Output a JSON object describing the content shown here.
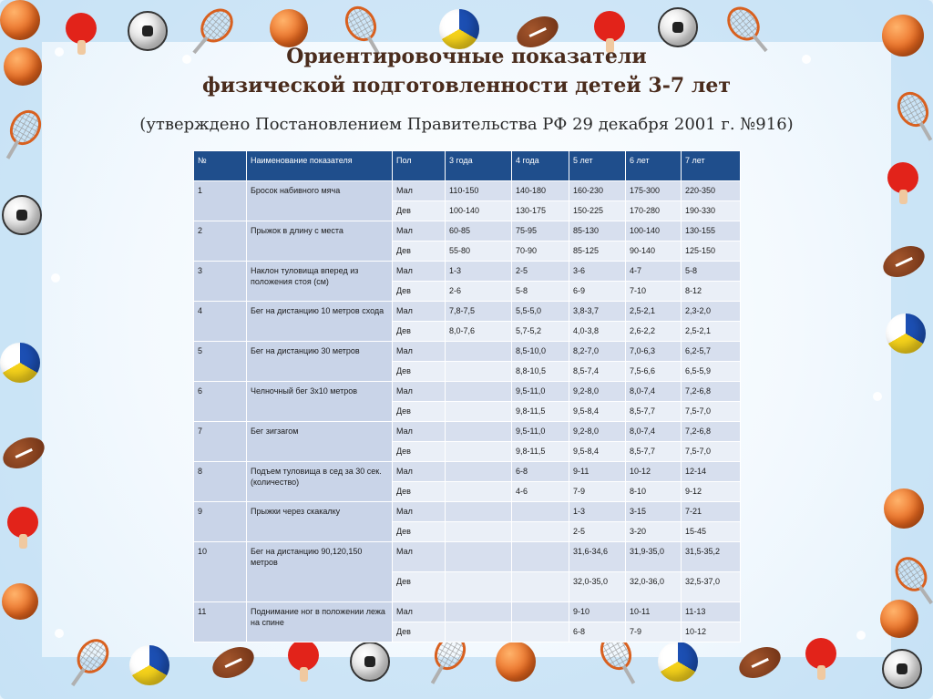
{
  "title_line1": "Ориентировочные показатели",
  "title_line2": "физической подготовленности детей 3-7 лет",
  "subtitle": "(утверждено Постановлением Правительства РФ 29 декабря 2001 г. №916)",
  "table": {
    "headers": [
      "№",
      "Наименование показателя",
      "Пол",
      "3 года",
      "4 года",
      "5 лет",
      "6 лет",
      "7 лет"
    ],
    "rows": [
      {
        "num": "1",
        "name": "Бросок набивного мяча",
        "sexes": [
          {
            "sex": "Мал",
            "values": [
              "110-150",
              "140-180",
              "160-230",
              "175-300",
              "220-350"
            ]
          },
          {
            "sex": "Дев",
            "values": [
              "100-140",
              "130-175",
              "150-225",
              "170-280",
              "190-330"
            ]
          }
        ]
      },
      {
        "num": "2",
        "name": "Прыжок в длину с места",
        "sexes": [
          {
            "sex": "Мал",
            "values": [
              "60-85",
              "75-95",
              "85-130",
              "100-140",
              "130-155"
            ]
          },
          {
            "sex": "Дев",
            "values": [
              "55-80",
              "70-90",
              "85-125",
              "90-140",
              "125-150"
            ]
          }
        ]
      },
      {
        "num": "3",
        "name": "Наклон туловища вперед из положения стоя (см)",
        "sexes": [
          {
            "sex": "Мал",
            "values": [
              "1-3",
              "2-5",
              "3-6",
              "4-7",
              "5-8"
            ]
          },
          {
            "sex": "Дев",
            "values": [
              "2-6",
              "5-8",
              "6-9",
              "7-10",
              "8-12"
            ]
          }
        ]
      },
      {
        "num": "4",
        "name": "Бег на дистанцию 10 метров схода",
        "sexes": [
          {
            "sex": "Мал",
            "values": [
              "7,8-7,5",
              "5,5-5,0",
              "3,8-3,7",
              "2,5-2,1",
              "2,3-2,0"
            ]
          },
          {
            "sex": "Дев",
            "values": [
              "8,0-7,6",
              "5,7-5,2",
              "4,0-3,8",
              "2,6-2,2",
              "2,5-2,1"
            ]
          }
        ]
      },
      {
        "num": "5",
        "name": "Бег на дистанцию 30 метров",
        "sexes": [
          {
            "sex": "Мал",
            "values": [
              "",
              "8,5-10,0",
              "8,2-7,0",
              "7,0-6,3",
              "6,2-5,7"
            ]
          },
          {
            "sex": "Дев",
            "values": [
              "",
              "8,8-10,5",
              "8,5-7,4",
              "7,5-6,6",
              "6,5-5,9"
            ]
          }
        ]
      },
      {
        "num": "6",
        "name": "Челночный бег 3х10 метров",
        "sexes": [
          {
            "sex": "Мал",
            "values": [
              "",
              "9,5-11,0",
              "9,2-8,0",
              "8,0-7,4",
              "7,2-6,8"
            ]
          },
          {
            "sex": "Дев",
            "values": [
              "",
              "9,8-11,5",
              "9,5-8,4",
              "8,5-7,7",
              "7,5-7,0"
            ]
          }
        ]
      },
      {
        "num": "7",
        "name": "Бег зигзагом",
        "sexes": [
          {
            "sex": "Мал",
            "values": [
              "",
              "9,5-11,0",
              "9,2-8,0",
              "8,0-7,4",
              "7,2-6,8"
            ]
          },
          {
            "sex": "Дев",
            "values": [
              "",
              "9,8-11,5",
              "9,5-8,4",
              "8,5-7,7",
              "7,5-7,0"
            ]
          }
        ]
      },
      {
        "num": "8",
        "name": "Подъем туловища в сед за 30 сек. (количество)",
        "sexes": [
          {
            "sex": "Мал",
            "values": [
              "",
              "6-8",
              "9-11",
              "10-12",
              "12-14"
            ]
          },
          {
            "sex": "Дев",
            "values": [
              "",
              "4-6",
              "7-9",
              "8-10",
              "9-12"
            ]
          }
        ]
      },
      {
        "num": "9",
        "name": "Прыжки через скакалку",
        "sexes": [
          {
            "sex": "Мал",
            "values": [
              "",
              "",
              "1-3",
              "3-15",
              "7-21"
            ]
          },
          {
            "sex": "Дев",
            "values": [
              "",
              "",
              "2-5",
              "3-20",
              "15-45"
            ]
          }
        ]
      },
      {
        "num": "10",
        "name": "Бег на дистанцию 90,120,150 метров",
        "tall": true,
        "sexes": [
          {
            "sex": "Мал",
            "values": [
              "",
              "",
              "31,6-34,6",
              "31,9-35,0",
              "31,5-35,2"
            ]
          },
          {
            "sex": "Дев",
            "values": [
              "",
              "",
              "32,0-35,0",
              "32,0-36,0",
              "32,5-37,0"
            ]
          }
        ]
      },
      {
        "num": "11",
        "name": "Поднимание ног в положении лежа на спине",
        "sexes": [
          {
            "sex": "Мал",
            "values": [
              "",
              "",
              "9-10",
              "10-11",
              "11-13"
            ]
          },
          {
            "sex": "Дев",
            "values": [
              "",
              "",
              "6-8",
              "7-9",
              "10-12"
            ]
          }
        ]
      }
    ]
  },
  "decorations": [
    "basketball-icon",
    "volleyball-icon",
    "soccer-ball-icon",
    "football-icon",
    "tennis-racket-icon",
    "ping-pong-paddle-icon",
    "shuttlecock-icon"
  ]
}
